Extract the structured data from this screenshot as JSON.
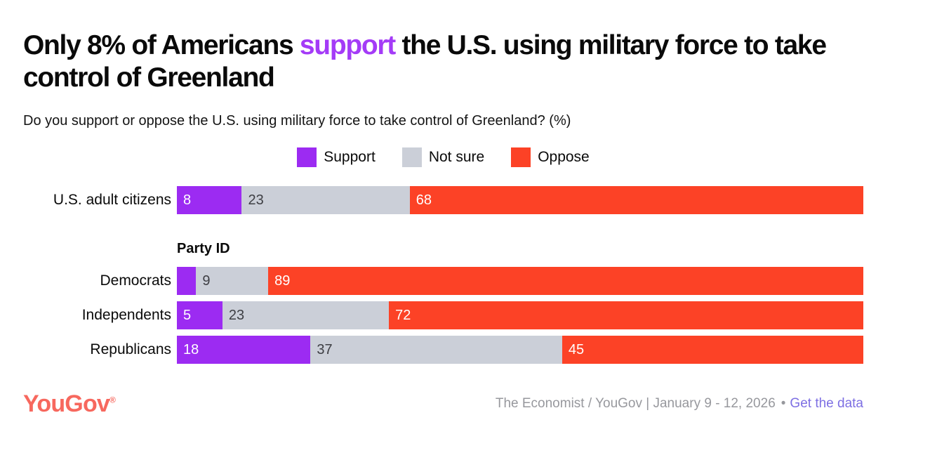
{
  "title": {
    "pre": "Only 8% of Americans ",
    "highlight": "support",
    "post": " the U.S. using military force to take control of Greenland",
    "highlight_color": "#a43bf7"
  },
  "subtitle": "Do you support or oppose the U.S. using military force to take control of Greenland? (%)",
  "legend": {
    "items": [
      {
        "label": "Support",
        "color": "#9c2bf2"
      },
      {
        "label": "Not sure",
        "color": "#cbcfd8"
      },
      {
        "label": "Oppose",
        "color": "#fc4226"
      }
    ]
  },
  "chart_data": {
    "type": "bar",
    "orientation": "horizontal",
    "stacked": true,
    "unit": "%",
    "xlim": [
      0,
      100
    ],
    "grid": false,
    "legend_position": "top-center",
    "title": "Only 8% of Americans support the U.S. using military force to take control of Greenland",
    "subtitle": "Do you support or oppose the U.S. using military force to take control of Greenland? (%)",
    "series": [
      {
        "name": "Support",
        "color": "#9c2bf2",
        "label_color": "#ffffff",
        "values": [
          8,
          2,
          5,
          18
        ]
      },
      {
        "name": "Not sure",
        "color": "#cbcfd8",
        "label_color": "#3e3f44",
        "values": [
          23,
          9,
          23,
          37
        ]
      },
      {
        "name": "Oppose",
        "color": "#fc4226",
        "label_color": "#ffffff",
        "values": [
          68,
          89,
          72,
          45
        ]
      }
    ],
    "categories": [
      "U.S. adult citizens",
      "Democrats",
      "Independents",
      "Republicans"
    ],
    "rows": [
      {
        "category": "U.S. adult citizens",
        "section": null,
        "values": [
          8,
          23,
          68
        ],
        "labels": [
          "8",
          "23",
          "68"
        ]
      },
      {
        "category": "Democrats",
        "section": "Party ID",
        "values": [
          2,
          9,
          89
        ],
        "labels": [
          "",
          "9",
          "89"
        ]
      },
      {
        "category": "Independents",
        "section": null,
        "values": [
          5,
          23,
          72
        ],
        "labels": [
          "5",
          "23",
          "72"
        ]
      },
      {
        "category": "Republicans",
        "section": null,
        "values": [
          18,
          37,
          45
        ],
        "labels": [
          "18",
          "37",
          "45"
        ]
      }
    ],
    "note": "Democrats Support segment value (~2) estimated from bar width; its numeric label is not displayed"
  },
  "footer": {
    "logo_text": "YouGov",
    "registered": "®",
    "logo_color": "#f7685e",
    "source": "The Economist / YouGov | January 9 - 12, 2026",
    "separator": "•",
    "link_label": "Get the data",
    "link_color": "#7d6fe3"
  }
}
